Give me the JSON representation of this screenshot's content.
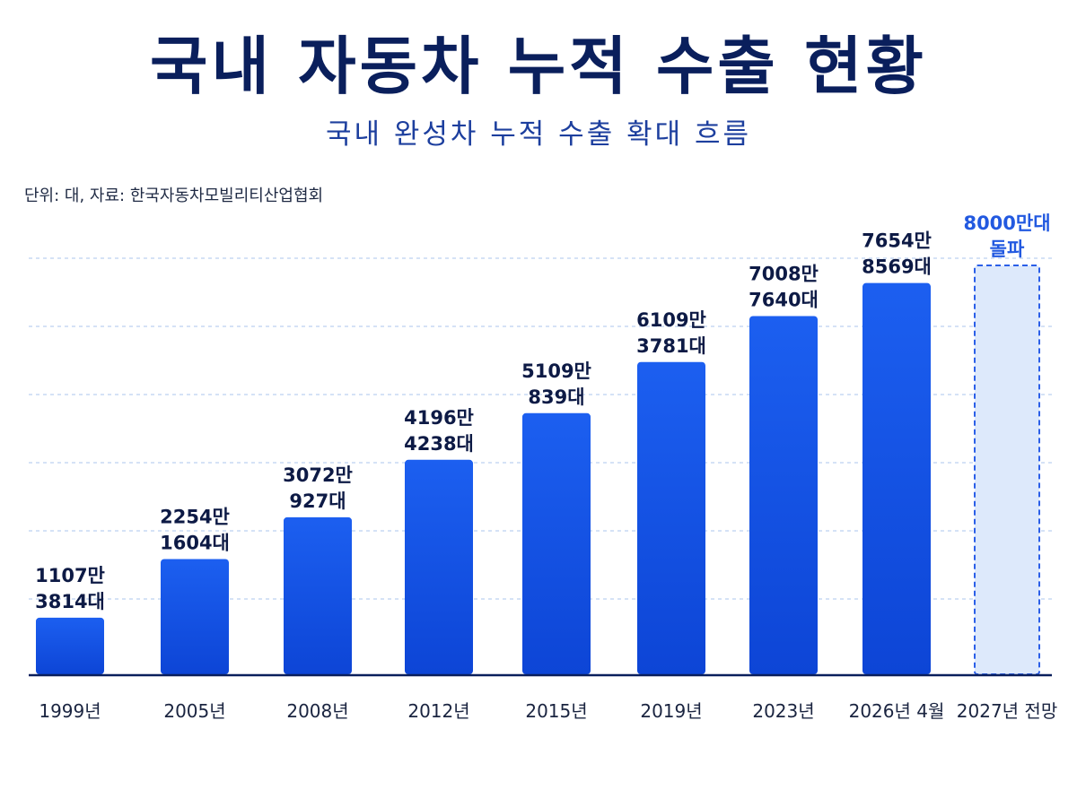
{
  "header": {
    "title": "국내 자동차 누적 수출 현황",
    "subtitle": "국내 완성차 누적 수출 확대 흐름",
    "source_note": "단위: 대, 자료: 한국자동차모빌리티산업협회"
  },
  "colors": {
    "bar": "#1c5ff0",
    "bar_dark": "#0d45d6",
    "projection_fill": "#dde9fb",
    "projection_border": "#2b5fe8",
    "projection_text": "#2259e0",
    "label_text": "#0d1a45",
    "gridline": "#bcd0f0",
    "axis": "#0a1f5c"
  },
  "chart_data": {
    "type": "bar",
    "title": "국내 자동차 누적 수출 현황",
    "subtitle": "국내 완성차 누적 수출 확대 흐름",
    "unit_note": "단위: 대, 자료: 한국자동차모빌리티산업협회",
    "categories": [
      "1999년",
      "2005년",
      "2008년",
      "2012년",
      "2015년",
      "2019년",
      "2023년",
      "2026년 4월",
      "2027년 전망"
    ],
    "values": [
      11073814,
      22541604,
      30720927,
      41964238,
      51090839,
      61093781,
      70087640,
      76548569,
      80000000
    ],
    "value_labels": [
      [
        "1107만",
        "3814대"
      ],
      [
        "2254만",
        "1604대"
      ],
      [
        "3072만",
        "927대"
      ],
      [
        "4196만",
        "4238대"
      ],
      [
        "5109만",
        "839대"
      ],
      [
        "6109만",
        "3781대"
      ],
      [
        "7008만",
        "7640대"
      ],
      [
        "7654만",
        "8569대"
      ],
      [
        "8000만대",
        "돌파"
      ]
    ],
    "projected": [
      false,
      false,
      false,
      false,
      false,
      false,
      false,
      false,
      true
    ],
    "ylim": [
      0,
      100000000
    ],
    "grid": true,
    "legend": "none"
  }
}
